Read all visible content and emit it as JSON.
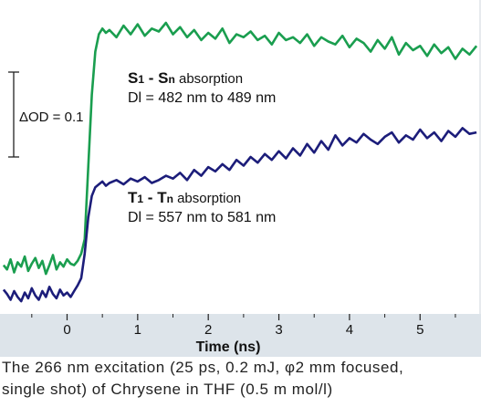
{
  "chart_data": {
    "type": "line",
    "xlabel": "Time (ns)",
    "x_ticks": [
      0,
      1,
      2,
      3,
      4,
      5
    ],
    "xlim": [
      -0.95,
      5.85
    ],
    "ylim": [
      -0.018,
      0.192
    ],
    "scale_bar": {
      "label": "ΔOD = 0.1",
      "value": 0.1
    },
    "series": [
      {
        "color": "#1a9e4f",
        "x": [
          -0.9,
          -0.85,
          -0.8,
          -0.75,
          -0.7,
          -0.65,
          -0.6,
          -0.55,
          -0.5,
          -0.45,
          -0.4,
          -0.35,
          -0.3,
          -0.25,
          -0.2,
          -0.15,
          -0.1,
          -0.05,
          0,
          0.05,
          0.1,
          0.15,
          0.2,
          0.25,
          0.3,
          0.35,
          0.4,
          0.45,
          0.5,
          0.55,
          0.6,
          0.7,
          0.8,
          0.9,
          1.0,
          1.1,
          1.2,
          1.3,
          1.4,
          1.5,
          1.6,
          1.7,
          1.8,
          1.9,
          2.0,
          2.1,
          2.2,
          2.3,
          2.4,
          2.5,
          2.6,
          2.7,
          2.8,
          2.9,
          3.0,
          3.1,
          3.2,
          3.3,
          3.4,
          3.5,
          3.6,
          3.7,
          3.8,
          3.9,
          4.0,
          4.1,
          4.2,
          4.3,
          4.4,
          4.5,
          4.6,
          4.7,
          4.8,
          4.9,
          5.0,
          5.1,
          5.2,
          5.3,
          5.4,
          5.5,
          5.6,
          5.7,
          5.8
        ],
        "values": [
          0.012,
          0.009,
          0.016,
          0.007,
          0.014,
          0.011,
          0.018,
          0.008,
          0.013,
          0.017,
          0.01,
          0.015,
          0.006,
          0.012,
          0.019,
          0.009,
          0.014,
          0.011,
          0.016,
          0.013,
          0.012,
          0.015,
          0.02,
          0.03,
          0.08,
          0.13,
          0.16,
          0.172,
          0.176,
          0.173,
          0.175,
          0.17,
          0.178,
          0.172,
          0.179,
          0.171,
          0.176,
          0.174,
          0.18,
          0.172,
          0.177,
          0.17,
          0.175,
          0.168,
          0.173,
          0.169,
          0.176,
          0.166,
          0.172,
          0.17,
          0.174,
          0.168,
          0.171,
          0.165,
          0.173,
          0.168,
          0.17,
          0.166,
          0.172,
          0.164,
          0.17,
          0.167,
          0.165,
          0.171,
          0.163,
          0.169,
          0.166,
          0.16,
          0.168,
          0.162,
          0.17,
          0.158,
          0.166,
          0.161,
          0.164,
          0.157,
          0.165,
          0.159,
          0.163,
          0.155,
          0.162,
          0.158,
          0.164
        ]
      },
      {
        "color": "#1c1d7a",
        "x": [
          -0.9,
          -0.85,
          -0.8,
          -0.75,
          -0.7,
          -0.65,
          -0.6,
          -0.55,
          -0.5,
          -0.45,
          -0.4,
          -0.35,
          -0.3,
          -0.25,
          -0.2,
          -0.15,
          -0.1,
          -0.05,
          0,
          0.05,
          0.1,
          0.15,
          0.2,
          0.25,
          0.3,
          0.35,
          0.4,
          0.45,
          0.5,
          0.55,
          0.6,
          0.7,
          0.8,
          0.9,
          1.0,
          1.1,
          1.2,
          1.3,
          1.4,
          1.5,
          1.6,
          1.7,
          1.8,
          1.9,
          2.0,
          2.1,
          2.2,
          2.3,
          2.4,
          2.5,
          2.6,
          2.7,
          2.8,
          2.9,
          3.0,
          3.1,
          3.2,
          3.3,
          3.4,
          3.5,
          3.6,
          3.7,
          3.8,
          3.9,
          4.0,
          4.1,
          4.2,
          4.3,
          4.4,
          4.5,
          4.6,
          4.7,
          4.8,
          4.9,
          5.0,
          5.1,
          5.2,
          5.3,
          5.4,
          5.5,
          5.6,
          5.7,
          5.8
        ],
        "values": [
          -0.005,
          -0.008,
          -0.012,
          -0.006,
          -0.01,
          -0.013,
          -0.007,
          -0.011,
          -0.004,
          -0.009,
          -0.012,
          -0.006,
          -0.01,
          -0.003,
          -0.008,
          -0.011,
          -0.005,
          -0.009,
          -0.007,
          -0.01,
          -0.006,
          -0.002,
          0.003,
          0.02,
          0.045,
          0.06,
          0.066,
          0.068,
          0.07,
          0.067,
          0.069,
          0.071,
          0.068,
          0.072,
          0.07,
          0.073,
          0.069,
          0.071,
          0.074,
          0.072,
          0.076,
          0.071,
          0.078,
          0.074,
          0.08,
          0.077,
          0.082,
          0.078,
          0.085,
          0.081,
          0.087,
          0.083,
          0.089,
          0.085,
          0.091,
          0.086,
          0.093,
          0.088,
          0.096,
          0.09,
          0.098,
          0.092,
          0.102,
          0.095,
          0.1,
          0.097,
          0.103,
          0.099,
          0.096,
          0.101,
          0.104,
          0.097,
          0.102,
          0.099,
          0.106,
          0.1,
          0.104,
          0.098,
          0.105,
          0.101,
          0.107,
          0.103,
          0.104
        ]
      }
    ]
  },
  "annotations": {
    "s1_big1": "S",
    "s1_sub1": "1",
    "s1_dash": " - ",
    "s1_big2": "S",
    "s1_subn": "n",
    "s1_word": " absorption",
    "s1_range": "Dl = 482 nm to 489 nm",
    "t1_big1": "T",
    "t1_sub1": "1",
    "t1_dash": " - ",
    "t1_big2": "T",
    "t1_subn": "n",
    "t1_word": " absorption",
    "t1_range": "Dl = 557 nm to 581 nm"
  },
  "caption": {
    "line1": "The 266 nm excitation (25 ps, 0.2 mJ, φ2 mm focused,",
    "line2": "single shot) of Chrysene in THF (0.5 m mol/l)"
  },
  "colors": {
    "panel_background": "#ffffff",
    "axis_strip": "#dde4ea",
    "s1_line": "#1a9e4f",
    "t1_line": "#1c1d7a"
  }
}
